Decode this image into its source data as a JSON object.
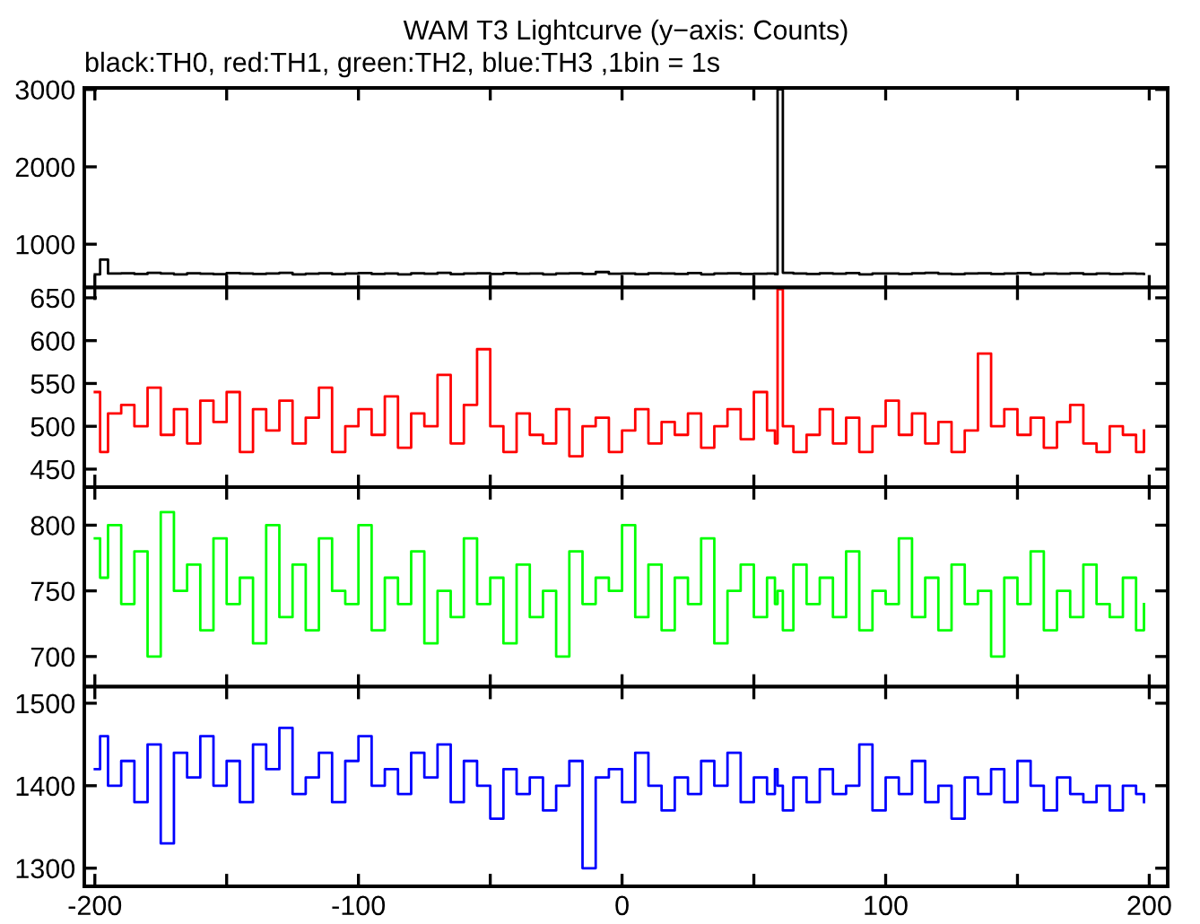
{
  "chart_data": [
    {
      "type": "step",
      "title": "WAM T3 Lightcurve (y−axis: Counts)",
      "subtitle": "black:TH0, red:TH1, green:TH2, blue:TH3 ,1bin = 1s",
      "x": [
        -200,
        -198,
        -195,
        -190,
        -185,
        -180,
        -175,
        -170,
        -165,
        -160,
        -155,
        -150,
        -145,
        -140,
        -135,
        -130,
        -125,
        -120,
        -115,
        -110,
        -105,
        -100,
        -95,
        -90,
        -85,
        -80,
        -75,
        -70,
        -65,
        -60,
        -55,
        -50,
        -45,
        -40,
        -35,
        -30,
        -25,
        -20,
        -15,
        -10,
        -5,
        0,
        5,
        10,
        15,
        20,
        25,
        30,
        35,
        40,
        45,
        50,
        55,
        58,
        59,
        61,
        65,
        70,
        75,
        80,
        85,
        90,
        95,
        100,
        105,
        110,
        115,
        120,
        125,
        130,
        135,
        140,
        145,
        150,
        155,
        160,
        165,
        170,
        175,
        180,
        185,
        190,
        195,
        198
      ],
      "series": [
        {
          "color": "#000000",
          "values": [
            610,
            800,
            620,
            625,
            615,
            630,
            620,
            610,
            625,
            618,
            612,
            628,
            620,
            615,
            622,
            630,
            610,
            618,
            625,
            612,
            620,
            628,
            615,
            622,
            610,
            625,
            618,
            630,
            612,
            620,
            625,
            615,
            628,
            618,
            622,
            610,
            620,
            625,
            615,
            640,
            618,
            622,
            612,
            625,
            620,
            615,
            628,
            610,
            620,
            625,
            615,
            618,
            622,
            612,
            3000,
            630,
            620,
            615,
            625,
            618,
            628,
            610,
            622,
            620,
            615,
            625,
            630,
            618,
            612,
            620,
            625,
            615,
            622,
            628,
            610,
            620,
            618,
            625,
            612,
            620,
            615,
            622,
            618,
            615
          ]
        }
      ],
      "xlim": [
        -204,
        207
      ],
      "xticks": [
        -200,
        {
          "value": -150,
          "label": null
        },
        -100,
        {
          "value": -50,
          "label": null
        },
        0,
        {
          "value": 50,
          "label": null
        },
        100,
        {
          "value": 150,
          "label": null
        },
        200
      ],
      "ylim": [
        440,
        3020
      ],
      "yticks": [
        1000,
        2000,
        3000
      ],
      "tick_labels": "y"
    },
    {
      "type": "step",
      "x": [
        -200,
        -198,
        -195,
        -190,
        -185,
        -180,
        -175,
        -170,
        -165,
        -160,
        -155,
        -150,
        -145,
        -140,
        -135,
        -130,
        -125,
        -120,
        -115,
        -110,
        -105,
        -100,
        -95,
        -90,
        -85,
        -80,
        -75,
        -70,
        -65,
        -60,
        -55,
        -50,
        -45,
        -40,
        -35,
        -30,
        -25,
        -20,
        -15,
        -10,
        -5,
        0,
        5,
        10,
        15,
        20,
        25,
        30,
        35,
        40,
        45,
        50,
        55,
        58,
        59,
        61,
        65,
        70,
        75,
        80,
        85,
        90,
        95,
        100,
        105,
        110,
        115,
        120,
        125,
        130,
        135,
        140,
        145,
        150,
        155,
        160,
        165,
        170,
        175,
        180,
        185,
        190,
        195,
        198
      ],
      "series": [
        {
          "color": "#ff0000",
          "values": [
            540,
            470,
            515,
            525,
            500,
            545,
            490,
            520,
            480,
            530,
            505,
            540,
            470,
            520,
            495,
            530,
            480,
            510,
            545,
            470,
            500,
            520,
            490,
            535,
            475,
            515,
            500,
            560,
            480,
            525,
            590,
            500,
            470,
            515,
            490,
            480,
            520,
            465,
            500,
            510,
            470,
            495,
            520,
            480,
            505,
            490,
            515,
            475,
            500,
            520,
            485,
            540,
            495,
            480,
            660,
            500,
            470,
            490,
            520,
            480,
            510,
            470,
            500,
            530,
            490,
            515,
            480,
            505,
            470,
            495,
            585,
            500,
            520,
            490,
            510,
            475,
            505,
            525,
            480,
            470,
            500,
            490,
            470,
            495
          ]
        }
      ],
      "xlim": [
        -204,
        207
      ],
      "xticks": [
        -200,
        {
          "value": -150,
          "label": null
        },
        -100,
        {
          "value": -50,
          "label": null
        },
        0,
        {
          "value": 50,
          "label": null
        },
        100,
        {
          "value": 150,
          "label": null
        },
        200
      ],
      "ylim": [
        429,
        662
      ],
      "yticks": [
        450,
        500,
        550,
        600,
        650
      ],
      "tick_labels": "y"
    },
    {
      "type": "step",
      "x": [
        -200,
        -198,
        -195,
        -190,
        -185,
        -180,
        -175,
        -170,
        -165,
        -160,
        -155,
        -150,
        -145,
        -140,
        -135,
        -130,
        -125,
        -120,
        -115,
        -110,
        -105,
        -100,
        -95,
        -90,
        -85,
        -80,
        -75,
        -70,
        -65,
        -60,
        -55,
        -50,
        -45,
        -40,
        -35,
        -30,
        -25,
        -20,
        -15,
        -10,
        -5,
        0,
        5,
        10,
        15,
        20,
        25,
        30,
        35,
        40,
        45,
        50,
        55,
        58,
        59,
        61,
        65,
        70,
        75,
        80,
        85,
        90,
        95,
        100,
        105,
        110,
        115,
        120,
        125,
        130,
        135,
        140,
        145,
        150,
        155,
        160,
        165,
        170,
        175,
        180,
        185,
        190,
        195,
        198
      ],
      "series": [
        {
          "color": "#00ff00",
          "values": [
            790,
            760,
            800,
            740,
            780,
            700,
            810,
            750,
            770,
            720,
            790,
            740,
            760,
            710,
            800,
            730,
            770,
            720,
            790,
            750,
            740,
            800,
            720,
            760,
            740,
            780,
            710,
            750,
            730,
            790,
            740,
            760,
            710,
            770,
            730,
            750,
            700,
            780,
            740,
            760,
            750,
            800,
            730,
            770,
            720,
            760,
            740,
            790,
            710,
            750,
            770,
            730,
            760,
            740,
            750,
            720,
            770,
            740,
            760,
            730,
            780,
            720,
            750,
            740,
            790,
            730,
            760,
            720,
            770,
            740,
            750,
            700,
            760,
            740,
            780,
            720,
            750,
            730,
            770,
            740,
            730,
            760,
            720,
            740
          ]
        }
      ],
      "xlim": [
        -204,
        207
      ],
      "xticks": [
        -200,
        {
          "value": -150,
          "label": null
        },
        -100,
        {
          "value": -50,
          "label": null
        },
        0,
        {
          "value": 50,
          "label": null
        },
        100,
        {
          "value": 150,
          "label": null
        },
        200
      ],
      "ylim": [
        677,
        829
      ],
      "yticks": [
        700,
        750,
        800
      ],
      "tick_labels": "y"
    },
    {
      "type": "step",
      "x": [
        -200,
        -198,
        -195,
        -190,
        -185,
        -180,
        -175,
        -170,
        -165,
        -160,
        -155,
        -150,
        -145,
        -140,
        -135,
        -130,
        -125,
        -120,
        -115,
        -110,
        -105,
        -100,
        -95,
        -90,
        -85,
        -80,
        -75,
        -70,
        -65,
        -60,
        -55,
        -50,
        -45,
        -40,
        -35,
        -30,
        -25,
        -20,
        -15,
        -10,
        -5,
        0,
        5,
        10,
        15,
        20,
        25,
        30,
        35,
        40,
        45,
        50,
        55,
        58,
        59,
        61,
        65,
        70,
        75,
        80,
        85,
        90,
        95,
        100,
        105,
        110,
        115,
        120,
        125,
        130,
        135,
        140,
        145,
        150,
        155,
        160,
        165,
        170,
        175,
        180,
        185,
        190,
        195,
        198
      ],
      "series": [
        {
          "color": "#0000ff",
          "values": [
            1420,
            1460,
            1400,
            1430,
            1380,
            1450,
            1330,
            1440,
            1410,
            1460,
            1400,
            1430,
            1380,
            1450,
            1420,
            1470,
            1390,
            1410,
            1440,
            1380,
            1430,
            1460,
            1400,
            1420,
            1390,
            1440,
            1410,
            1450,
            1380,
            1430,
            1400,
            1360,
            1420,
            1390,
            1410,
            1370,
            1400,
            1430,
            1300,
            1410,
            1420,
            1380,
            1440,
            1400,
            1370,
            1410,
            1390,
            1430,
            1400,
            1440,
            1380,
            1410,
            1390,
            1420,
            1400,
            1370,
            1410,
            1380,
            1420,
            1390,
            1400,
            1450,
            1370,
            1410,
            1390,
            1430,
            1380,
            1400,
            1360,
            1410,
            1390,
            1420,
            1380,
            1430,
            1400,
            1370,
            1410,
            1390,
            1380,
            1400,
            1370,
            1400,
            1390,
            1380
          ]
        }
      ],
      "xlim": [
        -204,
        207
      ],
      "xticks": [
        -200,
        {
          "value": -150,
          "label": null
        },
        -100,
        {
          "value": -50,
          "label": null
        },
        0,
        {
          "value": 50,
          "label": null
        },
        100,
        {
          "value": 150,
          "label": null
        },
        200
      ],
      "ylim": [
        1278,
        1520
      ],
      "yticks": [
        1300,
        1400,
        1500
      ]
    }
  ]
}
